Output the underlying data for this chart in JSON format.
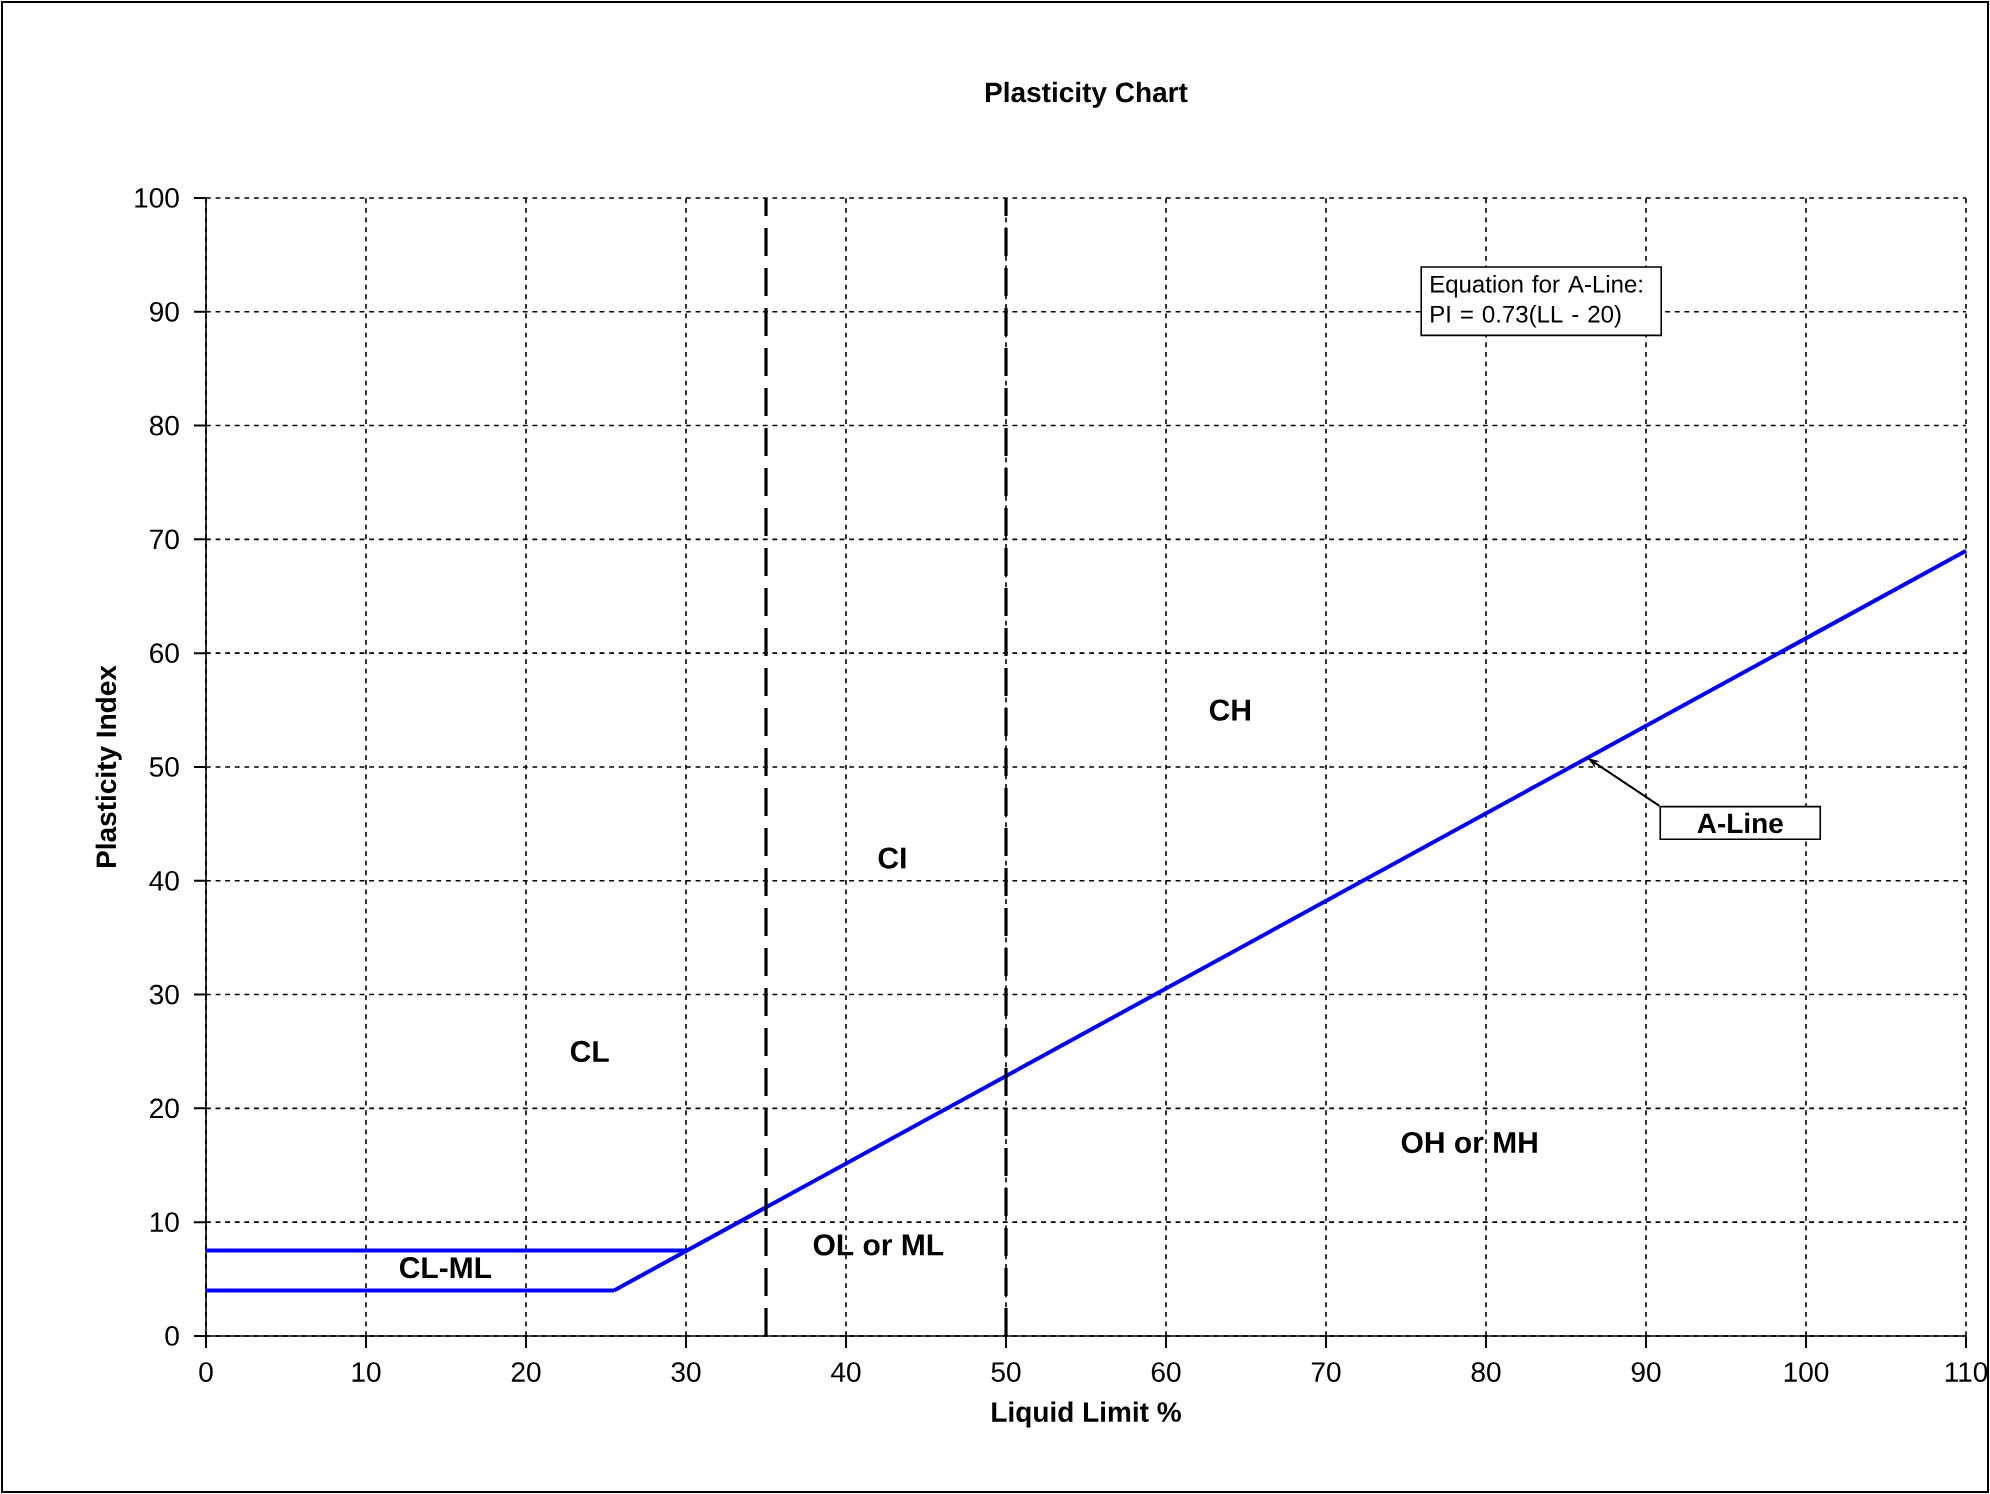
{
  "chart_data": {
    "type": "line",
    "title": "Plasticity Chart",
    "xlabel": "Liquid Limit %",
    "ylabel": "Plasticity Index",
    "xlim": [
      0,
      110
    ],
    "xticks": [
      0,
      10,
      20,
      30,
      40,
      50,
      60,
      70,
      80,
      90,
      100,
      110
    ],
    "ylim": [
      0,
      100
    ],
    "yticks": [
      0,
      10,
      20,
      30,
      40,
      50,
      60,
      70,
      80,
      90,
      100
    ],
    "grid": true,
    "legend": false,
    "marker": "none",
    "line_style": "solid",
    "series": [
      {
        "name": "A-Line",
        "color": "#0000ff",
        "x": [
          25.5,
          110
        ],
        "values": [
          4,
          69
        ]
      },
      {
        "color": "#0000ff",
        "x": [
          0,
          25.5
        ],
        "values": [
          4,
          4
        ]
      },
      {
        "color": "#0000ff",
        "x": [
          0,
          30
        ],
        "values": [
          7.5,
          7.5
        ]
      }
    ],
    "ref_lines": [
      {
        "axis": "x",
        "value": 35,
        "color": "#000000",
        "line_style": "dashed"
      },
      {
        "axis": "x",
        "value": 50,
        "color": "#000000",
        "line_style": "dashed"
      }
    ],
    "annotations": [
      "Equation for A-Line: PI = 0.73(LL - 20)",
      "CL",
      "CI",
      "CH",
      "CL-ML",
      "OL or ML",
      "OH or MH"
    ]
  }
}
